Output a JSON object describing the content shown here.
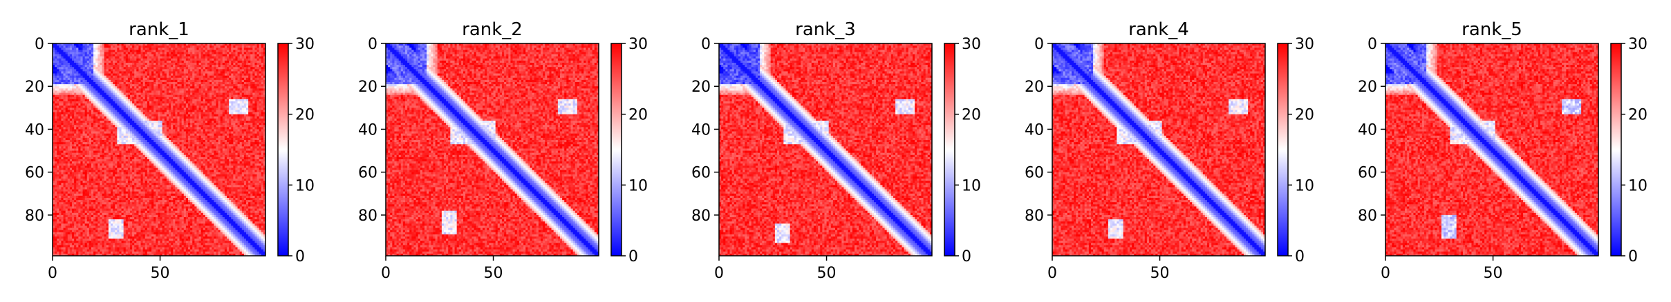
{
  "chart_data": [
    {
      "type": "heatmap",
      "title": "rank_1",
      "xlabel": "",
      "ylabel": "",
      "x_ticks": [
        0,
        50
      ],
      "y_ticks": [
        0,
        20,
        40,
        60,
        80
      ],
      "xlim": [
        0,
        99
      ],
      "ylim": [
        99,
        0
      ],
      "colorbar": {
        "range": [
          0,
          30
        ],
        "ticks": [
          0,
          10,
          20,
          30
        ],
        "colormap": "bwr",
        "colors": [
          "#0000ff",
          "#ffffff",
          "#ff0000"
        ]
      },
      "matrix_size": 99,
      "diagonal_band": "blue (low values, ~0-8) along the main diagonal",
      "low_value_regions": [
        {
          "rows": [
            0,
            18
          ],
          "cols": [
            0,
            18
          ],
          "value_approx": 6
        },
        {
          "rows": [
            26,
            32
          ],
          "cols": [
            82,
            90
          ],
          "value_approx": 14
        },
        {
          "rows": [
            82,
            90
          ],
          "cols": [
            26,
            32
          ],
          "value_approx": 14
        },
        {
          "rows": [
            36,
            46
          ],
          "cols": [
            30,
            50
          ],
          "value_approx": 14
        }
      ],
      "background_value_approx": 27
    },
    {
      "type": "heatmap",
      "title": "rank_2",
      "xlabel": "",
      "ylabel": "",
      "x_ticks": [
        0,
        50
      ],
      "y_ticks": [
        0,
        20,
        40,
        60,
        80
      ],
      "xlim": [
        0,
        99
      ],
      "ylim": [
        99,
        0
      ],
      "colorbar": {
        "range": [
          0,
          30
        ],
        "ticks": [
          0,
          10,
          20,
          30
        ],
        "colormap": "bwr",
        "colors": [
          "#0000ff",
          "#ffffff",
          "#ff0000"
        ]
      },
      "matrix_size": 99,
      "diagonal_band": "blue (low values, ~0-8) along the main diagonal",
      "low_value_regions": [
        {
          "rows": [
            0,
            18
          ],
          "cols": [
            0,
            18
          ],
          "value_approx": 6
        },
        {
          "rows": [
            26,
            32
          ],
          "cols": [
            80,
            88
          ],
          "value_approx": 14
        },
        {
          "rows": [
            78,
            88
          ],
          "cols": [
            26,
            32
          ],
          "value_approx": 14
        },
        {
          "rows": [
            36,
            46
          ],
          "cols": [
            30,
            50
          ],
          "value_approx": 14
        }
      ],
      "background_value_approx": 27
    },
    {
      "type": "heatmap",
      "title": "rank_3",
      "xlabel": "",
      "ylabel": "",
      "x_ticks": [
        0,
        50
      ],
      "y_ticks": [
        0,
        20,
        40,
        60,
        80
      ],
      "xlim": [
        0,
        99
      ],
      "ylim": [
        99,
        0
      ],
      "colorbar": {
        "range": [
          0,
          30
        ],
        "ticks": [
          0,
          10,
          20,
          30
        ],
        "colormap": "bwr",
        "colors": [
          "#0000ff",
          "#ffffff",
          "#ff0000"
        ]
      },
      "matrix_size": 99,
      "diagonal_band": "blue (low values, ~0-8) along the main diagonal",
      "low_value_regions": [
        {
          "rows": [
            0,
            18
          ],
          "cols": [
            0,
            18
          ],
          "value_approx": 5
        },
        {
          "rows": [
            26,
            32
          ],
          "cols": [
            82,
            90
          ],
          "value_approx": 14
        },
        {
          "rows": [
            84,
            92
          ],
          "cols": [
            26,
            32
          ],
          "value_approx": 14
        },
        {
          "rows": [
            36,
            46
          ],
          "cols": [
            30,
            50
          ],
          "value_approx": 14
        }
      ],
      "background_value_approx": 27
    },
    {
      "type": "heatmap",
      "title": "rank_4",
      "xlabel": "",
      "ylabel": "",
      "x_ticks": [
        0,
        50
      ],
      "y_ticks": [
        0,
        20,
        40,
        60,
        80
      ],
      "xlim": [
        0,
        99
      ],
      "ylim": [
        99,
        0
      ],
      "colorbar": {
        "range": [
          0,
          30
        ],
        "ticks": [
          0,
          10,
          20,
          30
        ],
        "colormap": "bwr",
        "colors": [
          "#0000ff",
          "#ffffff",
          "#ff0000"
        ]
      },
      "matrix_size": 99,
      "diagonal_band": "blue (low values, ~0-8) along the main diagonal",
      "low_value_regions": [
        {
          "rows": [
            0,
            18
          ],
          "cols": [
            0,
            18
          ],
          "value_approx": 6
        },
        {
          "rows": [
            26,
            32
          ],
          "cols": [
            82,
            90
          ],
          "value_approx": 14
        },
        {
          "rows": [
            82,
            90
          ],
          "cols": [
            26,
            32
          ],
          "value_approx": 14
        },
        {
          "rows": [
            36,
            46
          ],
          "cols": [
            30,
            50
          ],
          "value_approx": 14
        }
      ],
      "background_value_approx": 27
    },
    {
      "type": "heatmap",
      "title": "rank_5",
      "xlabel": "",
      "ylabel": "",
      "x_ticks": [
        0,
        50
      ],
      "y_ticks": [
        0,
        20,
        40,
        60,
        80
      ],
      "xlim": [
        0,
        99
      ],
      "ylim": [
        99,
        0
      ],
      "colorbar": {
        "range": [
          0,
          30
        ],
        "ticks": [
          0,
          10,
          20,
          30
        ],
        "colormap": "bwr",
        "colors": [
          "#0000ff",
          "#ffffff",
          "#ff0000"
        ]
      },
      "matrix_size": 99,
      "diagonal_band": "blue (low values, ~0-8) along the main diagonal",
      "low_value_regions": [
        {
          "rows": [
            0,
            18
          ],
          "cols": [
            0,
            18
          ],
          "value_approx": 6
        },
        {
          "rows": [
            26,
            32
          ],
          "cols": [
            82,
            90
          ],
          "value_approx": 12
        },
        {
          "rows": [
            80,
            90
          ],
          "cols": [
            26,
            32
          ],
          "value_approx": 12
        },
        {
          "rows": [
            36,
            46
          ],
          "cols": [
            30,
            50
          ],
          "value_approx": 14
        }
      ],
      "background_value_approx": 27
    }
  ]
}
